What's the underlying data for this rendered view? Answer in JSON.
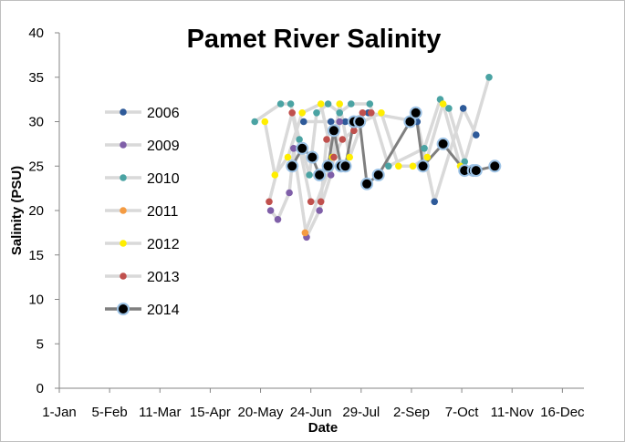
{
  "chart_data": {
    "type": "line",
    "title": "Pamet River Salinity",
    "xlabel": "Date",
    "ylabel": "Salinity (PSU)",
    "x_unit": "day-of-year",
    "xlim": [
      1,
      366
    ],
    "ylim": [
      0,
      40
    ],
    "y_ticks": [
      0,
      5,
      10,
      15,
      20,
      25,
      30,
      35,
      40
    ],
    "x_ticks": [
      {
        "value": 1,
        "label": "1-Jan"
      },
      {
        "value": 36,
        "label": "5-Feb"
      },
      {
        "value": 71,
        "label": "11-Mar"
      },
      {
        "value": 106,
        "label": "15-Apr"
      },
      {
        "value": 141,
        "label": "20-May"
      },
      {
        "value": 176,
        "label": "24-Jun"
      },
      {
        "value": 211,
        "label": "29-Jul"
      },
      {
        "value": 246,
        "label": "2-Sep"
      },
      {
        "value": 281,
        "label": "7-Oct"
      },
      {
        "value": 316,
        "label": "11-Nov"
      },
      {
        "value": 351,
        "label": "16-Dec"
      }
    ],
    "grid": false,
    "legend": "left",
    "series": [
      {
        "name": "2006",
        "color": "#2e5a99",
        "x": [
          171,
          190,
          200,
          216,
          250,
          262,
          282,
          291
        ],
        "y": [
          30,
          30,
          30,
          31,
          30,
          21,
          31.5,
          28.5
        ]
      },
      {
        "name": "2009",
        "color": "#7f5fa8",
        "x": [
          148,
          153,
          161,
          164,
          173,
          182,
          190,
          196
        ],
        "y": [
          20,
          19,
          22,
          27,
          17,
          20,
          24,
          30
        ]
      },
      {
        "name": "2010",
        "color": "#4aa3a3",
        "x": [
          137,
          155,
          162,
          168,
          175,
          180,
          188,
          196,
          204,
          217,
          230,
          255,
          266,
          272,
          283,
          300
        ],
        "y": [
          30,
          32,
          32,
          28,
          24,
          31,
          32,
          31,
          32,
          32,
          25,
          27,
          32.5,
          31.5,
          25.5,
          35
        ]
      },
      {
        "name": "2011",
        "color": "#f49b42",
        "x": [
          172,
          192
        ],
        "y": [
          17.5,
          26
        ]
      },
      {
        "name": "2012",
        "color": "#ffee00",
        "x": [
          144,
          151,
          160,
          170,
          183,
          191,
          196,
          203,
          212,
          225,
          237,
          247,
          257,
          268,
          280
        ],
        "y": [
          30,
          24,
          26,
          31,
          32,
          26,
          32,
          26,
          30,
          31,
          25,
          25,
          26,
          32,
          25
        ]
      },
      {
        "name": "2013",
        "color": "#c0504d",
        "x": [
          147,
          163,
          176,
          183,
          187,
          192,
          198,
          206,
          212,
          218
        ],
        "y": [
          21,
          31,
          21,
          21,
          28,
          26,
          28,
          29,
          31,
          31
        ]
      },
      {
        "name": "2014",
        "color": "#000000",
        "line_color": "#7f7f7f",
        "marker_edge": "#9dc3e6",
        "x": [
          163,
          170,
          177,
          182,
          188,
          192,
          197,
          200,
          206,
          210,
          215,
          223,
          245,
          249,
          254,
          268,
          283,
          289,
          291,
          304
        ],
        "y": [
          25,
          27,
          26,
          24,
          25,
          29,
          25,
          25,
          30,
          30,
          23,
          24,
          30,
          31,
          25,
          27.5,
          24.5,
          24.5,
          24.5,
          25
        ]
      }
    ]
  }
}
